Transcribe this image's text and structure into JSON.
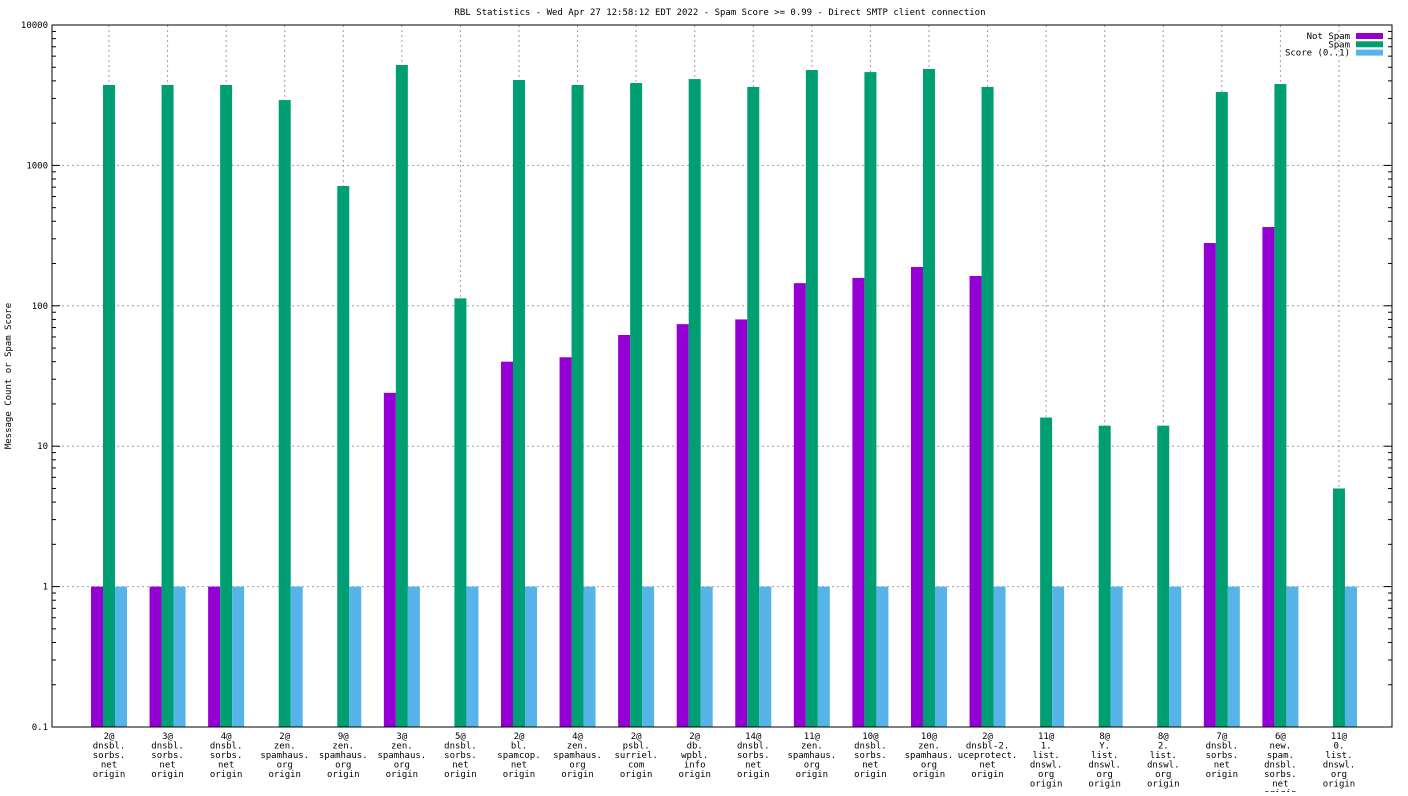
{
  "chart_data": {
    "type": "bar",
    "title": "RBL Statistics - Wed Apr 27 12:58:12 EDT 2022 - Spam Score >= 0.99 - Direct SMTP client connection",
    "xlabel": "",
    "ylabel": "Message Count or Spam Score",
    "yscale": "log",
    "ylim": [
      0.1,
      10000
    ],
    "yticks": [
      "0.1",
      "1",
      "10",
      "100",
      "1000",
      "10000"
    ],
    "grid": true,
    "legend_position": "top-right",
    "categories": [
      [
        "2@",
        "dnsbl.",
        "sorbs.",
        "net",
        "origin"
      ],
      [
        "3@",
        "dnsbl.",
        "sorbs.",
        "net",
        "origin"
      ],
      [
        "4@",
        "dnsbl.",
        "sorbs.",
        "net",
        "origin"
      ],
      [
        "2@",
        "zen.",
        "spamhaus.",
        "org",
        "origin"
      ],
      [
        "9@",
        "zen.",
        "spamhaus.",
        "org",
        "origin"
      ],
      [
        "3@",
        "zen.",
        "spamhaus.",
        "org",
        "origin"
      ],
      [
        "5@",
        "dnsbl.",
        "sorbs.",
        "net",
        "origin"
      ],
      [
        "2@",
        "bl.",
        "spamcop.",
        "net",
        "origin"
      ],
      [
        "4@",
        "zen.",
        "spamhaus.",
        "org",
        "origin"
      ],
      [
        "2@",
        "psbl.",
        "surriel.",
        "com",
        "origin"
      ],
      [
        "2@",
        "db.",
        "wpbl.",
        "info",
        "origin"
      ],
      [
        "14@",
        "dnsbl.",
        "sorbs.",
        "net",
        "origin"
      ],
      [
        "11@",
        "zen.",
        "spamhaus.",
        "org",
        "origin"
      ],
      [
        "10@",
        "dnsbl.",
        "sorbs.",
        "net",
        "origin"
      ],
      [
        "10@",
        "zen.",
        "spamhaus.",
        "org",
        "origin"
      ],
      [
        "2@",
        "dnsbl-2.",
        "uceprotect.",
        "net",
        "origin"
      ],
      [
        "11@",
        "1.",
        "list.",
        "dnswl.",
        "org",
        "origin"
      ],
      [
        "8@",
        "Y.",
        "list.",
        "dnswl.",
        "org",
        "origin"
      ],
      [
        "8@",
        "2.",
        "list.",
        "dnswl.",
        "org",
        "origin"
      ],
      [
        "7@",
        "dnsbl.",
        "sorbs.",
        "net",
        "origin"
      ],
      [
        "6@",
        "new.",
        "spam.",
        "dnsbl.",
        "sorbs.",
        "net",
        "origin"
      ],
      [
        "11@",
        "0.",
        "list.",
        "dnswl.",
        "org",
        "origin"
      ]
    ],
    "series": [
      {
        "name": "Not Spam",
        "color": "#9400d3",
        "values": [
          1,
          1,
          1,
          0,
          0,
          24,
          0,
          40,
          43,
          62,
          74,
          80,
          145,
          158,
          189,
          163,
          0,
          0,
          0,
          280,
          364,
          0
        ]
      },
      {
        "name": "Spam",
        "color": "#009e73",
        "values": [
          3740,
          3740,
          3740,
          2920,
          713,
          5190,
          113,
          4060,
          3740,
          3860,
          4120,
          3620,
          4780,
          4620,
          4860,
          3620,
          16,
          14,
          14,
          3330,
          3800,
          5
        ]
      },
      {
        "name": "Score (0..1)",
        "color": "#56b4e9",
        "values": [
          1,
          1,
          1,
          1,
          1,
          1,
          1,
          1,
          1,
          1,
          1,
          1,
          1,
          1,
          1,
          1,
          1,
          1,
          1,
          1,
          1,
          1
        ]
      }
    ]
  }
}
